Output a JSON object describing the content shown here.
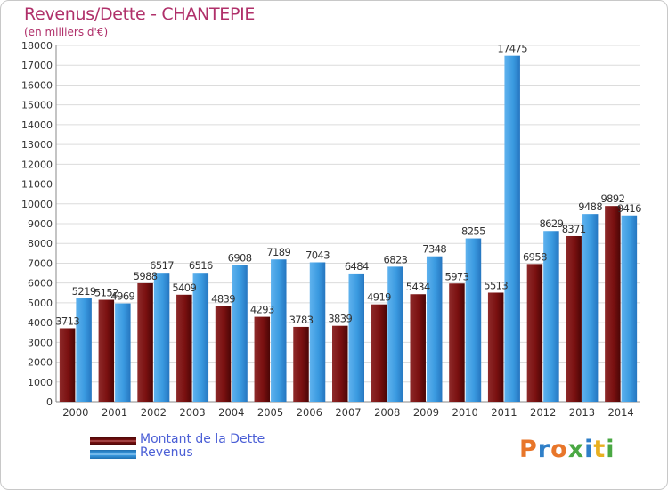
{
  "header": {
    "title": "Revenus/Dette - CHANTEPIE",
    "subtitle": "(en milliers d'€)"
  },
  "chart_data": {
    "type": "bar",
    "title": "Revenus/Dette - CHANTEPIE",
    "subtitle": "(en milliers d'€)",
    "xlabel": "",
    "ylabel": "",
    "ylim": [
      0,
      18000
    ],
    "yticks": [
      0,
      1000,
      2000,
      3000,
      4000,
      5000,
      6000,
      7000,
      8000,
      9000,
      10000,
      11000,
      12000,
      13000,
      14000,
      15000,
      16000,
      17000,
      18000
    ],
    "grid": true,
    "legend_position": "bottom-left",
    "categories": [
      "2000",
      "2001",
      "2002",
      "2003",
      "2004",
      "2005",
      "2006",
      "2007",
      "2008",
      "2009",
      "2010",
      "2011",
      "2012",
      "2013",
      "2014"
    ],
    "series": [
      {
        "name": "Montant de la Dette",
        "color": "#7a1010",
        "values": [
          3713,
          5152,
          5988,
          5409,
          4839,
          4293,
          3783,
          3839,
          4919,
          5434,
          5973,
          5513,
          6958,
          8371,
          9892
        ],
        "labels": [
          "3713",
          "5152",
          "5988",
          "5409",
          "4839",
          "4293",
          "3783",
          "3839",
          "4919",
          "5434",
          "5973",
          "5513",
          "6958",
          "8371",
          "9892"
        ]
      },
      {
        "name": "Revenus",
        "color": "#3a9ae0",
        "values": [
          5219,
          4969,
          6517,
          6516,
          6908,
          7189,
          7043,
          6484,
          6823,
          7348,
          8255,
          17475,
          8629,
          9488,
          9416
        ],
        "labels": [
          "5219",
          "4969",
          "6517",
          "6516",
          "6908",
          "7189",
          "7043",
          "6484",
          "6823",
          "7348",
          "8255",
          "17475",
          "8629",
          "9488",
          "9416"
        ]
      }
    ]
  },
  "legend": {
    "items": [
      {
        "label": "Montant de la Dette",
        "color": "#7a1010"
      },
      {
        "label": "Revenus",
        "color": "#3a9ae0"
      }
    ]
  },
  "logo": {
    "text": "Proxiti",
    "letter_colors": [
      "#e8762a",
      "#2f7fc8",
      "#e8762a",
      "#4aa843",
      "#2f7fc8",
      "#e8b020",
      "#4aa843"
    ]
  }
}
